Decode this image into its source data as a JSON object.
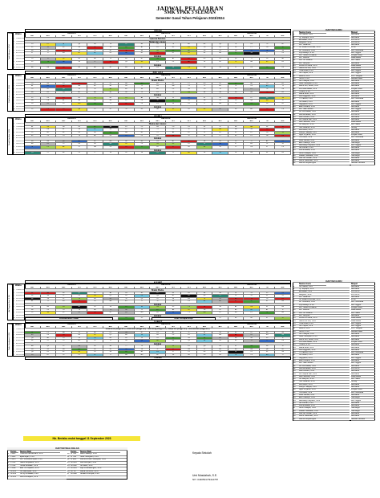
{
  "header": {
    "title": "JADWAL PELAJARAN",
    "school": "SMK YPKK 3 SLEMAN",
    "semester": "Semester Gasal Tahun Pelajaran 2023/2024"
  },
  "days": [
    "SENIN",
    "SELASA",
    "RABU",
    "KAMIS",
    "JUMAT"
  ],
  "headers": {
    "piket": "PIKET",
    "waktu": "Waktu",
    "kelas_x": "KELAS X",
    "kelas_xi": "KELAS XI",
    "kelas_xii": "KELAS XII",
    "classes": [
      "AK1",
      "AK2",
      "AK3",
      "TB 1",
      "TB 2",
      "BDP",
      "AK1",
      "AK2",
      "AK3",
      "TB 1",
      "TB 2",
      "BDP",
      "AK1",
      "AK2",
      "AK3",
      "TB",
      "BDP"
    ]
  },
  "daftar_guru": {
    "title": "DAFTAR GURU",
    "col_nama": "Nama Guru",
    "col_mapel": "Mapel",
    "teachers": [
      {
        "no": "1",
        "name": "Sri Hastuti, S.Pd",
        "mapel": "Akuntansi"
      },
      {
        "no": "2",
        "name": "Hj. Suprapti, S.Pd",
        "mapel": "Akuntansi"
      },
      {
        "no": "3",
        "name": "Elimawati, S.Pd",
        "mapel": "PKK & PK"
      },
      {
        "no": "4",
        "name": "Margono, S.Pd",
        "mapel": "PKK & PK"
      },
      {
        "no": "5",
        "name": "Drs. Sudarmo",
        "mapel": "Akuntansi"
      },
      {
        "no": "6",
        "name": "Sri Suwarni Rumiati, S.Pd",
        "mapel": "PPKn"
      },
      {
        "no": "7",
        "name": "Ari Tresnanto, S.Pd",
        "mapel": "Bhs. Indonesia"
      },
      {
        "no": "8",
        "name": "Puji Rahayu, S.Pd",
        "mapel": "Bhs. Inggris"
      },
      {
        "no": "9",
        "name": "Drs. Hanafi Purwanto",
        "mapel": "Penjas Orkes"
      },
      {
        "no": "10",
        "name": "Drs. Widodo",
        "mapel": "Matematika"
      },
      {
        "no": "11",
        "name": "Dra. Sri Suwarni",
        "mapel": "Bhs. Jawa"
      },
      {
        "no": "12",
        "name": "Drs. Sunyoto",
        "mapel": "Akuntansi"
      },
      {
        "no": "13",
        "name": "Fidha Fitri Adha, S.Pd",
        "mapel": "Matematika"
      },
      {
        "no": "14",
        "name": "Nanik Nur Aini, S.Pd",
        "mapel": "Matematika"
      },
      {
        "no": "15",
        "name": "Yulia Riska, S.Pd",
        "mapel": "Bhs. Inggris"
      },
      {
        "no": "16",
        "name": "Nur Hayati, S.Pd",
        "mapel": "Bhs. Inggris"
      },
      {
        "no": "17",
        "name": "Martini, S.Pd",
        "mapel": "PAI / Tarqiyah"
      },
      {
        "no": "18",
        "name": "Surtini, S.Pd",
        "mapel": "Bahasa Jawa"
      },
      {
        "no": "19",
        "name": "Nur Hidayati, S.Pd",
        "mapel": "Akuntansi"
      },
      {
        "no": "20",
        "name": "Nuke Hardiyanti, S.Pd",
        "mapel": "Akuntansi"
      },
      {
        "no": "21",
        "name": "Retno Fitri, Rusdi, S.Pd",
        "mapel": "Akuntansi"
      },
      {
        "no": "22",
        "name": "Fitri Rahmawati, S.Pd",
        "mapel": "Penjas Orkes"
      },
      {
        "no": "23",
        "name": "Yulianti, S.Pd",
        "mapel": "Akuntansi"
      },
      {
        "no": "24",
        "name": "Ratna Dewi, S.Pd",
        "mapel": "Akuntansi"
      },
      {
        "no": "25",
        "name": "Dwi Anggraini, S.Pd",
        "mapel": "Akuntansi"
      },
      {
        "no": "26",
        "name": "Tri Hastuti, S.Pd",
        "mapel": "Bhs. Indonesia"
      },
      {
        "no": "27",
        "name": "Sri Lestari, S.Pd",
        "mapel": "Akuntansi"
      },
      {
        "no": "28",
        "name": "Sugiyanto, S.Pd",
        "mapel": "Bhs. Inggris"
      },
      {
        "no": "29",
        "name": "Eka Purwanti, S.Pd",
        "mapel": "Akuntansi"
      },
      {
        "no": "30",
        "name": "Drs. Hadi Suroso",
        "mapel": "Bhs. Inggris"
      },
      {
        "no": "31",
        "name": "Ani Kurniawati, S.Pd",
        "mapel": "Akuntansi"
      },
      {
        "no": "32",
        "name": "Andi Ernawan, S.Pd",
        "mapel": "PKK & PK"
      },
      {
        "no": "33",
        "name": "Dian Arisanti, S.Pd",
        "mapel": "Akuntansi"
      },
      {
        "no": "34",
        "name": "Ari Puspita Sari, S.Pd",
        "mapel": "Akuntansi"
      },
      {
        "no": "35",
        "name": "Budi Santoso, S.Pd",
        "mapel": "Matematika"
      },
      {
        "no": "36",
        "name": "Sri Wahyuni, S.Pd",
        "mapel": "Bhs. Jawa"
      },
      {
        "no": "37",
        "name": "Hari Susanto, S.Pd",
        "mapel": "Simdig"
      },
      {
        "no": "38",
        "name": "Rini Astuti, S.Pd",
        "mapel": "Akuntansi"
      },
      {
        "no": "39",
        "name": "Wahyu Hidayat, S.Pd",
        "mapel": "Akuntansi"
      },
      {
        "no": "40",
        "name": "Agus Priyanto, S.Pd",
        "mapel": "Penjas Orkes"
      },
      {
        "no": "41",
        "name": "Yuli Astuti, S.Pd",
        "mapel": "Bhs. Indonesia"
      },
      {
        "no": "42",
        "name": "Dewi Kartika, S.Pd",
        "mapel": "Akuntansi"
      },
      {
        "no": "43",
        "name": "Eko Prasetyo, S.Pd",
        "mapel": "Tata Boga"
      },
      {
        "no": "44",
        "name": "Bambang Haryanto, S.Pd",
        "mapel": "Bhs. Inggris"
      },
      {
        "no": "45",
        "name": "Siti Aminah, S.Pd",
        "mapel": "Akuntansi"
      },
      {
        "no": "46",
        "name": "Lilik Ernawati, S.Pd",
        "mapel": "Akuntansi"
      },
      {
        "no": "47",
        "name": "Nurul Hidayah, S.Pd",
        "mapel": "Tata Boga"
      },
      {
        "no": "48",
        "name": "Wawan Setiawan, S.Pd",
        "mapel": "Tata Boga"
      },
      {
        "no": "49",
        "name": "Ana Nur Lestari, S.Pd",
        "mapel": "Akuntansi"
      },
      {
        "no": "50",
        "name": "Retno Wulandari, S.Pd",
        "mapel": "Akuntansi"
      },
      {
        "no": "51",
        "name": "Rahma Setyaningsih",
        "mapel": "Sketsa Pramuka"
      }
    ],
    "teachers2": [
      {
        "no": "1",
        "name": "Sri Hastuti, S.Pd",
        "mapel": "Akuntansi"
      },
      {
        "no": "2",
        "name": "Hj. Suprapti, S.Pd",
        "mapel": "Akuntansi"
      },
      {
        "no": "3",
        "name": "Elimawati, S.Pd",
        "mapel": "PKK & PK"
      },
      {
        "no": "4",
        "name": "Margono, S.Pd",
        "mapel": "PKK & PK"
      },
      {
        "no": "5",
        "name": "Drs. Sudarmo",
        "mapel": "Akuntansi"
      },
      {
        "no": "6",
        "name": "Sri Suwarni Rumiati, S.Pd",
        "mapel": "PPKn"
      },
      {
        "no": "7",
        "name": "Ari Tresnanto, S.Pd",
        "mapel": "Bhs. Indonesia"
      },
      {
        "no": "8",
        "name": "Puji Rahayu, S.Pd",
        "mapel": "Bhs. Inggris"
      },
      {
        "no": "9",
        "name": "Drs. Hanafi Purwanto",
        "mapel": "Penjas Orkes"
      },
      {
        "no": "10",
        "name": "Drs. Widodo",
        "mapel": "Matematika"
      },
      {
        "no": "11",
        "name": "Dra. Sri Suwarni",
        "mapel": "Bhs. Jawa"
      },
      {
        "no": "12",
        "name": "Drs. Sunyoto",
        "mapel": "Akuntansi"
      },
      {
        "no": "13",
        "name": "Fidha Fitri Adha, S.Pd",
        "mapel": "Matematika"
      },
      {
        "no": "14",
        "name": "Nanik Nur Aini, S.Pd",
        "mapel": "Matematika"
      },
      {
        "no": "15",
        "name": "Yulia Riska, S.Pd",
        "mapel": "Bhs. Inggris"
      },
      {
        "no": "16",
        "name": "Nur Hayati, S.Pd",
        "mapel": "Bhs. Inggris"
      },
      {
        "no": "17",
        "name": "Martini, S.Pd",
        "mapel": "PAI / Tarqiyah"
      },
      {
        "no": "18",
        "name": "Surtini, S.Pd",
        "mapel": "Bahasa Jawa"
      },
      {
        "no": "19",
        "name": "Nur Hidayati, S.Pd",
        "mapel": "Akuntansi"
      },
      {
        "no": "20",
        "name": "Nuke Hardiyanti, S.Pd",
        "mapel": "Akuntansi"
      },
      {
        "no": "21",
        "name": "Retno Fitri, Rusdi, S.Pd",
        "mapel": "Akuntansi"
      },
      {
        "no": "22",
        "name": "Fitri Rahmawati, S.Pd",
        "mapel": "Penjas Orkes"
      },
      {
        "no": "23",
        "name": "Yulianti, S.Pd",
        "mapel": "Akuntansi"
      },
      {
        "no": "24",
        "name": "Ratna Dewi, S.Pd",
        "mapel": "Akuntansi"
      },
      {
        "no": "25",
        "name": "Dwi Anggraini, S.Pd",
        "mapel": "Akuntansi"
      },
      {
        "no": "26",
        "name": "Tri Hastuti, S.Pd",
        "mapel": "Bhs. Indonesia"
      },
      {
        "no": "27",
        "name": "Sri Lestari, S.Pd",
        "mapel": "Akuntansi"
      },
      {
        "no": "28",
        "name": "Sugiyanto, S.Pd",
        "mapel": "Bhs. Inggris"
      },
      {
        "no": "29",
        "name": "Eka Purwanti, S.Pd",
        "mapel": "Akuntansi"
      },
      {
        "no": "30",
        "name": "Drs. Hadi Suroso",
        "mapel": "Bhs. Inggris"
      },
      {
        "no": "31",
        "name": "Ani Kurniawati, S.Pd",
        "mapel": "Akuntansi"
      },
      {
        "no": "32",
        "name": "Andi Ernawan, S.Pd",
        "mapel": "PKK & PK"
      },
      {
        "no": "33",
        "name": "Dian Arisanti, S.Pd",
        "mapel": "Akuntansi"
      },
      {
        "no": "34",
        "name": "Ari Puspita Sari, S.Pd",
        "mapel": "Akuntansi"
      },
      {
        "no": "35",
        "name": "Budi Santoso, S.Pd",
        "mapel": "Matematika"
      },
      {
        "no": "36",
        "name": "Sri Wahyuni, S.Pd",
        "mapel": "Bhs. Jawa"
      },
      {
        "no": "37",
        "name": "Hari Susanto, S.Pd",
        "mapel": "Simdig"
      },
      {
        "no": "38",
        "name": "Rini Astuti, S.Pd",
        "mapel": "Akuntansi"
      },
      {
        "no": "39",
        "name": "Wahyu Hidayat, S.Pd",
        "mapel": "Akuntansi"
      },
      {
        "no": "40",
        "name": "Agus Priyanto, S.Pd",
        "mapel": "Penjas Orkes"
      },
      {
        "no": "41",
        "name": "Yuli Astuti, S.Pd",
        "mapel": "Bhs. Indonesia"
      },
      {
        "no": "42",
        "name": "Dewi Kartika, S.Pd",
        "mapel": "Akuntansi"
      },
      {
        "no": "43",
        "name": "Eko Prasetyo, S.Pd",
        "mapel": "Tata Boga"
      },
      {
        "no": "44",
        "name": "Bambang Haryanto, S.Pd",
        "mapel": "Bhs. Inggris"
      },
      {
        "no": "45",
        "name": "Siti Aminah, S.Pd",
        "mapel": "Akuntansi"
      },
      {
        "no": "46",
        "name": "Lilik Ernawati, S.Pd",
        "mapel": "Akuntansi"
      },
      {
        "no": "47",
        "name": "Nurul Hidayah, S.Pd",
        "mapel": "Tata Boga"
      },
      {
        "no": "48",
        "name": "Wawan Setiawan, S.Pd",
        "mapel": "Tata Boga"
      },
      {
        "no": "49",
        "name": "Ana Nur Lestari, S.Pd",
        "mapel": "Akuntansi"
      },
      {
        "no": "50",
        "name": "Retno Wulandari, S.Pd",
        "mapel": "Akuntansi"
      },
      {
        "no": "51",
        "name": "Rahma Setyaningsih",
        "mapel": "Sketsa Pramuka"
      }
    ]
  },
  "monday": {
    "times": [
      "07.00-07.45",
      "07.45-08.30",
      "08.30-09.15",
      "09.15-10.00",
      "10.00-10.15",
      "10.15-11.00",
      "11.00-11.45",
      "11.45-12.30",
      "12.30-13.15",
      "13.15-14.00",
      "14.00-14.45"
    ],
    "bands": [
      {
        "row": 0,
        "text": "Upacara Bendera"
      },
      {
        "row": 1,
        "text": "Shalat dan Literasi"
      },
      {
        "row": 6,
        "text": "Istirahat"
      },
      {
        "row": 9,
        "text": "Istirahat"
      }
    ],
    "piket_label": "Tutik Rahayu, S.Pd"
  },
  "tuesday": {
    "times": [
      "07.00-07.45",
      "07.45-08.30",
      "08.30-09.15",
      "09.15-10.00",
      "10.00-10.15",
      "10.15-11.00",
      "11.00-11.45",
      "11.45-12.30",
      "12.30-13.15",
      "13.15-14.00",
      "14.00-14.45"
    ],
    "bands": [
      {
        "row": 0,
        "text": "Shalat Dhuha"
      },
      {
        "row": 5,
        "text": "Istirahat"
      },
      {
        "row": 9,
        "text": "Istirahat"
      }
    ],
    "piket_label": "Fitri Rahmawati, S.Pd"
  },
  "wednesday": {
    "times": [
      "07.00-07.45",
      "07.45-08.30",
      "08.30-09.15",
      "09.15-10.00",
      "10.00-10.15",
      "10.15-11.00",
      "11.00-11.45",
      "11.45-12.30",
      "12.30-13.15",
      "13.15-14.00",
      "14.00-14.45"
    ],
    "bands": [
      {
        "row": 0,
        "text": "Dhuha dan Literasi"
      },
      {
        "row": 5,
        "text": "Istirahat"
      },
      {
        "row": 9,
        "text": "Istirahat"
      }
    ],
    "piket_label": "Nanik Nur Aini, S.Pd"
  },
  "thursday": {
    "times": [
      "07.00-07.45",
      "07.45-08.30",
      "08.30-09.15",
      "09.15-10.00",
      "10.00-10.15",
      "10.15-11.00",
      "11.00-11.45",
      "11.45-12.30",
      "12.30-13.15",
      "13.15-14.00",
      "14.00-14.45"
    ],
    "bands": [
      {
        "row": 0,
        "text": "Shalat Dhuha"
      },
      {
        "row": 5,
        "text": "Istirahat"
      },
      {
        "row": 9,
        "text": "Istirahat"
      }
    ],
    "ekstra": "Ekstrakurikuler Pilihan",
    "ekstra2": "Kelas Persiapan Kerja",
    "piket_label": "Ari Puspita Sari, S.Pd"
  },
  "friday": {
    "times": [
      "07.00-07.45",
      "07.45-08.30",
      "08.30-09.15",
      "09.15-10.00",
      "10.00-10.15",
      "10.15-11.00",
      "11.00-11.45",
      "11.45-12.30",
      "12.30-13.15",
      "13.15-14.00"
    ],
    "jumat_note": "Jumat Bersih (Minggu ke-1) ; Jumat Sehat (Minggu ke-2) ; Jumat Religi (Minggu ke-3) ; Budaya Dan (Minggu ke-4) ; Jumat Motivasi (Minggu ke-5)",
    "bands": [
      {
        "row": 0,
        "text": ""
      },
      {
        "row": 5,
        "text": "Istirahat"
      }
    ],
    "pramuka": "Pramuka",
    "piket_label": "Nuke Hardiyanti, S.Pd"
  },
  "note": "Nb. Berlaku mulai tanggal 11 September 2023",
  "wali_kelas": {
    "title": "DAFTAR WALI KELAS",
    "col_kelas": "Kelas",
    "col_nama": "Nama Wali",
    "left": [
      {
        "no": "1",
        "kelas": "X AK1",
        "nama": "Tutik Dwi Nurrahmani, S.Pd"
      },
      {
        "no": "2",
        "kelas": "X AK2",
        "nama": "Epalmayah, S.Pd"
      },
      {
        "no": "3",
        "kelas": "X AK3",
        "nama": "Drs. Purwantomiyato, S.Pd"
      },
      {
        "no": "4",
        "kelas": "X TB1",
        "nama": "Nanik Widyastuti, S.Pd"
      },
      {
        "no": "5",
        "kelas": "X TB2",
        "nama": "Herda Nurkasih, S.Pd"
      },
      {
        "no": "6",
        "kelas": "X BDP",
        "nama": "Eka Tri Puspasiri, S.Pd"
      },
      {
        "no": "7",
        "kelas": "XI AK1",
        "nama": "Sri Martutiyati, S.Pd"
      },
      {
        "no": "8",
        "kelas": "XI AK2",
        "nama": "Sri Nyi Ismawati, S.Pd"
      },
      {
        "no": "9",
        "kelas": "XI AK3",
        "nama": "Fanni Andayani, S.Pd"
      }
    ],
    "right": [
      {
        "no": "10",
        "kelas": "XI TB1",
        "nama": "Dedi Prasetyo, S.Pd"
      },
      {
        "no": "11",
        "kelas": "XI TB2",
        "nama": "Nuke Hardiyanti, S.Pd"
      },
      {
        "no": "12",
        "kelas": "XI BDP",
        "nama": "Fatma Pertiwi Handayani, S.Pd"
      },
      {
        "no": "13",
        "kelas": "XII AK1",
        "nama": "Dwi Andriyani, S.Pd"
      },
      {
        "no": "14",
        "kelas": "XII AK2",
        "nama": "Sri Astuti, S.Pd"
      },
      {
        "no": "15",
        "kelas": "XII AK3",
        "nama": "Fajri Purwitaningsih, S.Pd"
      },
      {
        "no": "16",
        "kelas": "XII TB",
        "nama": "Ratna Purnomo, S.Pd"
      },
      {
        "no": "17",
        "kelas": "XII BDP",
        "nama": "Nuraeni Sumiyati, S.Pd"
      }
    ]
  },
  "signature": {
    "role": "Kepala Sekolah",
    "name": "Umi Musdahah, S.E.",
    "nip": "NIY. 04405017/9412787"
  },
  "palette": {
    "red": "#d62020",
    "green": "#4aa03a",
    "yellow": "#f6e63a",
    "lime": "#a8d65a",
    "blue": "#3a70c8",
    "cyan": "#7ccde6",
    "gray": "#bdbdbd",
    "black": "#111111",
    "teal": "#2e8a7a"
  }
}
